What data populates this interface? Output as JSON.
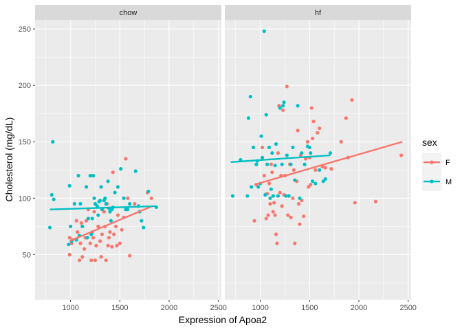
{
  "chart_data": {
    "type": "scatter",
    "xlabel": "Expression of Apoa2",
    "ylabel": "Cholesterol (mg/dL)",
    "xlim": [
      640,
      2530
    ],
    "ylim": [
      10,
      258
    ],
    "x_ticks": [
      1000,
      1500,
      2000,
      2500
    ],
    "y_ticks": [
      50,
      100,
      150,
      200,
      250
    ],
    "x_tick_labels": [
      "1000",
      "1500",
      "2000",
      "2500"
    ],
    "y_tick_labels": [
      "50",
      "100",
      "150",
      "200",
      "250"
    ],
    "grid": true,
    "legend": {
      "title": "sex",
      "placement": "right",
      "entries": [
        {
          "label": "F",
          "color": "#F8766D"
        },
        {
          "label": "M",
          "color": "#00BFC4"
        }
      ]
    },
    "panels": [
      {
        "strip": "chow",
        "series": [
          {
            "sex": "F",
            "color": "#F8766D",
            "points": [
              [
                990,
                50
              ],
              [
                990,
                65
              ],
              [
                1010,
                60
              ],
              [
                1020,
                63
              ],
              [
                1060,
                80
              ],
              [
                1070,
                70
              ],
              [
                1090,
                45
              ],
              [
                1100,
                60
              ],
              [
                1110,
                78
              ],
              [
                1120,
                48
              ],
              [
                1140,
                55
              ],
              [
                1150,
                65
              ],
              [
                1160,
                80
              ],
              [
                1180,
                90
              ],
              [
                1200,
                60
              ],
              [
                1210,
                45
              ],
              [
                1220,
                70
              ],
              [
                1230,
                65
              ],
              [
                1240,
                88
              ],
              [
                1250,
                45
              ],
              [
                1260,
                58
              ],
              [
                1280,
                75
              ],
              [
                1300,
                62
              ],
              [
                1310,
                48
              ],
              [
                1320,
                68
              ],
              [
                1340,
                88
              ],
              [
                1350,
                75
              ],
              [
                1360,
                45
              ],
              [
                1370,
                95
              ],
              [
                1380,
                58
              ],
              [
                1390,
                65
              ],
              [
                1400,
                70
              ],
              [
                1410,
                80
              ],
              [
                1420,
                57
              ],
              [
                1430,
                123
              ],
              [
                1440,
                68
              ],
              [
                1460,
                75
              ],
              [
                1470,
                58
              ],
              [
                1480,
                85
              ],
              [
                1500,
                60
              ],
              [
                1520,
                72
              ],
              [
                1540,
                83
              ],
              [
                1560,
                135
              ],
              [
                1580,
                100
              ],
              [
                1600,
                49
              ],
              [
                1650,
                95
              ],
              [
                1780,
                105
              ],
              [
                1820,
                100
              ]
            ],
            "trend": [
              [
                990,
                62
              ],
              [
                1830,
                93
              ]
            ]
          },
          {
            "sex": "M",
            "color": "#00BFC4",
            "points": [
              [
                790,
                74
              ],
              [
                810,
                103
              ],
              [
                820,
                150
              ],
              [
                830,
                99
              ],
              [
                980,
                59
              ],
              [
                990,
                111
              ],
              [
                1000,
                75
              ],
              [
                1010,
                62
              ],
              [
                1040,
                95
              ],
              [
                1060,
                63
              ],
              [
                1080,
                120
              ],
              [
                1090,
                67
              ],
              [
                1100,
                95
              ],
              [
                1120,
                75
              ],
              [
                1160,
                110
              ],
              [
                1170,
                65
              ],
              [
                1180,
                82
              ],
              [
                1200,
                120
              ],
              [
                1210,
                68
              ],
              [
                1220,
                82
              ],
              [
                1230,
                120
              ],
              [
                1240,
                100
              ],
              [
                1250,
                95
              ],
              [
                1270,
                93
              ],
              [
                1280,
                85
              ],
              [
                1290,
                97
              ],
              [
                1300,
                98
              ],
              [
                1310,
                110
              ],
              [
                1320,
                90
              ],
              [
                1340,
                98
              ],
              [
                1350,
                100
              ],
              [
                1360,
                95
              ],
              [
                1380,
                115
              ],
              [
                1390,
                91
              ],
              [
                1400,
                88
              ],
              [
                1410,
                80
              ],
              [
                1420,
                90
              ],
              [
                1430,
                92
              ],
              [
                1450,
                105
              ],
              [
                1480,
                110
              ],
              [
                1510,
                126
              ],
              [
                1540,
                100
              ],
              [
                1560,
                90
              ],
              [
                1580,
                90
              ],
              [
                1600,
                95
              ],
              [
                1660,
                124
              ],
              [
                1690,
                93
              ],
              [
                1700,
                88
              ],
              [
                1720,
                80
              ],
              [
                1740,
                74
              ],
              [
                1790,
                106
              ],
              [
                1870,
                92
              ]
            ],
            "trend": [
              [
                790,
                90
              ],
              [
                1870,
                93
              ]
            ]
          }
        ]
      },
      {
        "strip": "hf",
        "series": [
          {
            "sex": "F",
            "color": "#F8766D",
            "points": [
              [
                940,
                80
              ],
              [
                960,
                112
              ],
              [
                1020,
                145
              ],
              [
                1040,
                120
              ],
              [
                1060,
                82
              ],
              [
                1070,
                104
              ],
              [
                1080,
                85
              ],
              [
                1090,
                113
              ],
              [
                1100,
                95
              ],
              [
                1110,
                130
              ],
              [
                1120,
                123
              ],
              [
                1130,
                88
              ],
              [
                1140,
                96
              ],
              [
                1150,
                85
              ],
              [
                1160,
                68
              ],
              [
                1170,
                60
              ],
              [
                1180,
                140
              ],
              [
                1190,
                182
              ],
              [
                1200,
                105
              ],
              [
                1210,
                120
              ],
              [
                1220,
                93
              ],
              [
                1230,
                178
              ],
              [
                1240,
                103
              ],
              [
                1250,
                120
              ],
              [
                1270,
                199
              ],
              [
                1280,
                85
              ],
              [
                1300,
                130
              ],
              [
                1310,
                83
              ],
              [
                1330,
                100
              ],
              [
                1340,
                125
              ],
              [
                1350,
                60
              ],
              [
                1370,
                115
              ],
              [
                1380,
                160
              ],
              [
                1390,
                95
              ],
              [
                1400,
                77
              ],
              [
                1410,
                138
              ],
              [
                1420,
                98
              ],
              [
                1440,
                84
              ],
              [
                1460,
                135
              ],
              [
                1480,
                150
              ],
              [
                1490,
                110
              ],
              [
                1500,
                136
              ],
              [
                1510,
                112
              ],
              [
                1520,
                180
              ],
              [
                1530,
                153
              ],
              [
                1540,
                168
              ],
              [
                1560,
                125
              ],
              [
                1580,
                158
              ],
              [
                1600,
                162
              ],
              [
                1630,
                128
              ],
              [
                1660,
                127
              ],
              [
                1720,
                126
              ],
              [
                1820,
                150
              ],
              [
                1870,
                171
              ],
              [
                1890,
                136
              ],
              [
                1930,
                187
              ],
              [
                1960,
                96
              ],
              [
                2170,
                97
              ],
              [
                2430,
                138
              ]
            ],
            "trend": [
              [
                940,
                112
              ],
              [
                2440,
                150
              ]
            ]
          },
          {
            "sex": "M",
            "color": "#00BFC4",
            "points": [
              [
                720,
                102
              ],
              [
                800,
                134
              ],
              [
                870,
                102
              ],
              [
                880,
                171
              ],
              [
                900,
                190
              ],
              [
                910,
                110
              ],
              [
                930,
                145
              ],
              [
                960,
                130
              ],
              [
                970,
                133
              ],
              [
                980,
                110
              ],
              [
                1000,
                113
              ],
              [
                1010,
                155
              ],
              [
                1020,
                136
              ],
              [
                1040,
                248
              ],
              [
                1050,
                103
              ],
              [
                1060,
                174
              ],
              [
                1070,
                130
              ],
              [
                1090,
                145
              ],
              [
                1100,
                100
              ],
              [
                1110,
                108
              ],
              [
                1120,
                140
              ],
              [
                1130,
                102
              ],
              [
                1150,
                129
              ],
              [
                1160,
                148
              ],
              [
                1180,
                102
              ],
              [
                1200,
                180
              ],
              [
                1220,
                130
              ],
              [
                1230,
                182
              ],
              [
                1240,
                185
              ],
              [
                1260,
                102
              ],
              [
                1270,
                138
              ],
              [
                1290,
                102
              ],
              [
                1310,
                130
              ],
              [
                1330,
                145
              ],
              [
                1350,
                116
              ],
              [
                1380,
                182
              ],
              [
                1400,
                100
              ],
              [
                1420,
                140
              ],
              [
                1450,
                130
              ],
              [
                1480,
                146
              ],
              [
                1500,
                145
              ],
              [
                1510,
                140
              ],
              [
                1530,
                115
              ],
              [
                1560,
                113
              ],
              [
                1600,
                125
              ],
              [
                1640,
                115
              ],
              [
                1660,
                117
              ],
              [
                1710,
                140
              ]
            ],
            "trend": [
              [
                700,
                132
              ],
              [
                1710,
                138
              ]
            ]
          }
        ]
      }
    ]
  }
}
